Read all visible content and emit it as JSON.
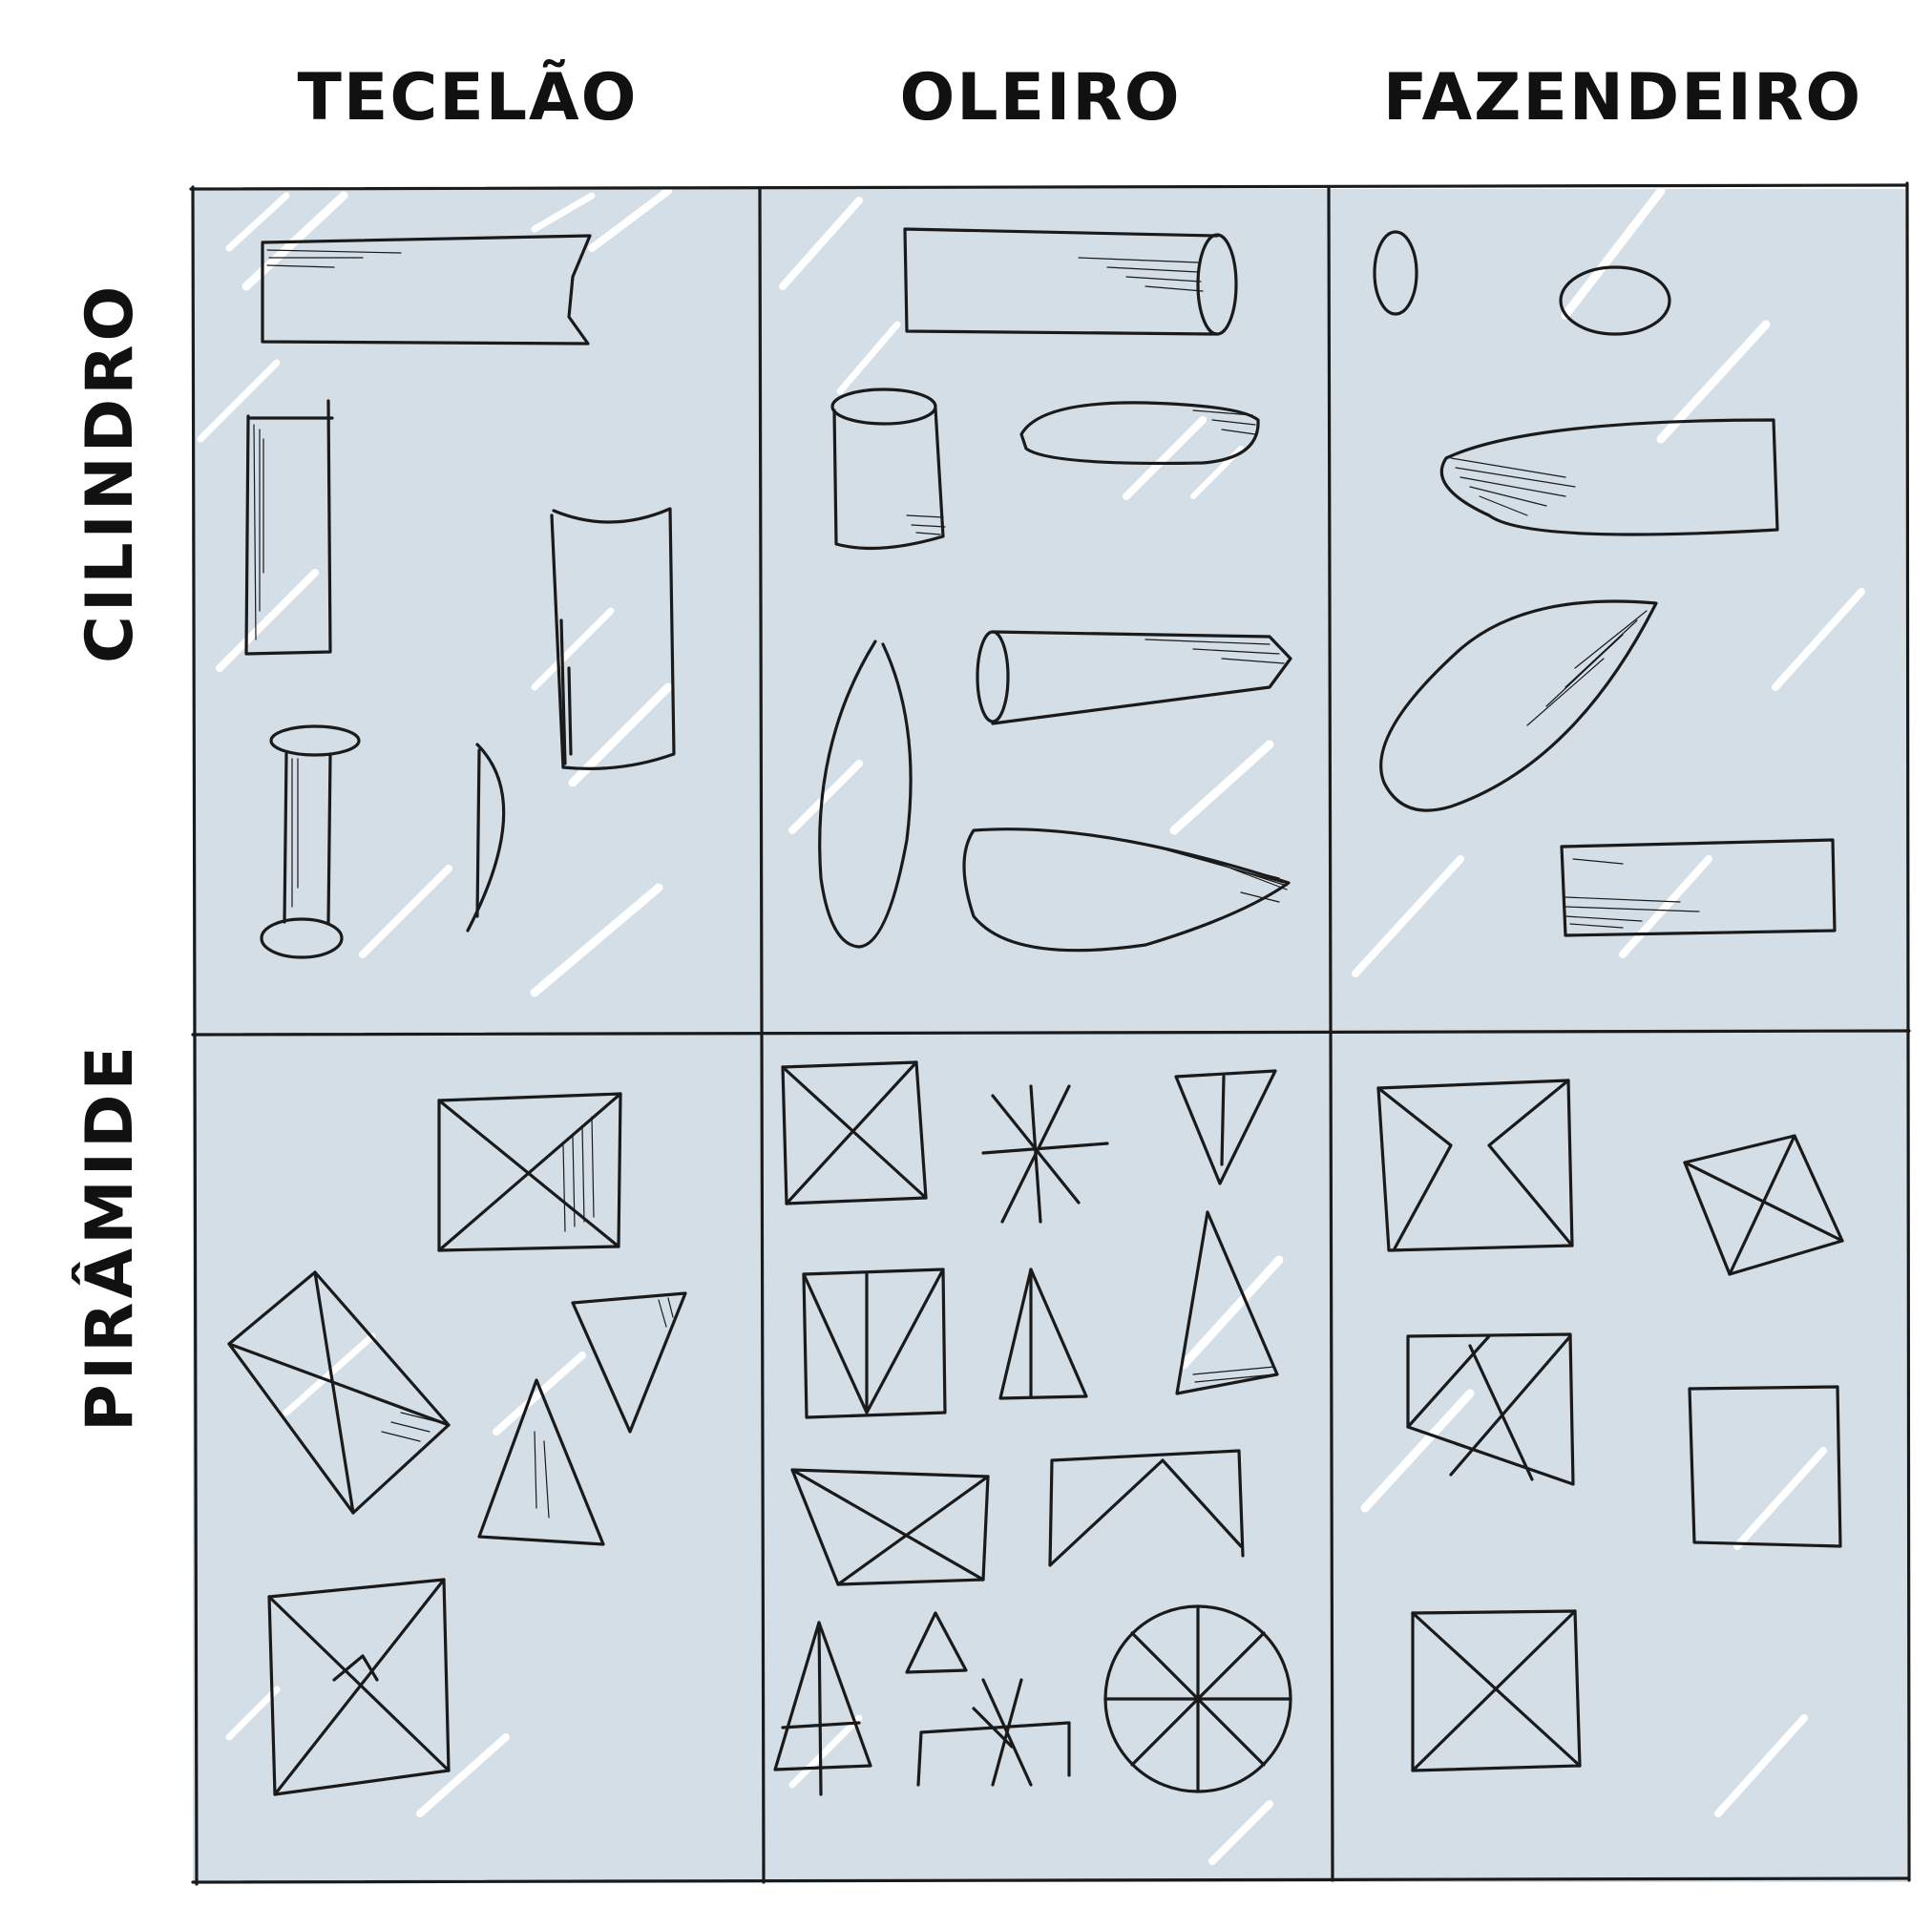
{
  "columns": [
    {
      "key": "tecelao",
      "label": "TECELÃO"
    },
    {
      "key": "oleiro",
      "label": "OLEIRO"
    },
    {
      "key": "fazendeiro",
      "label": "FAZENDEIRO"
    }
  ],
  "rows": [
    {
      "key": "cilindro",
      "label": "CILINDRO"
    },
    {
      "key": "piramide",
      "label": "PIRÂMIDE"
    }
  ],
  "colors": {
    "cell_fill": "#d3dee6",
    "ink": "#1a1a1a",
    "highlight": "#ffffff"
  }
}
